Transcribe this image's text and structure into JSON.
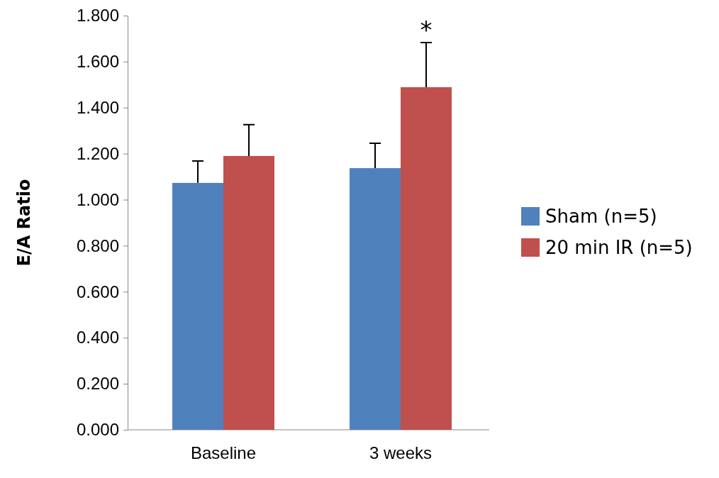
{
  "chart_data": {
    "type": "bar",
    "ylabel": "E/A Ratio",
    "categories": [
      "Baseline",
      "3 weeks"
    ],
    "series": [
      {
        "name": "Sham (n=5)",
        "color": "#4f81bd",
        "values": [
          1.073,
          1.137
        ],
        "errors": [
          [
            1.073,
            1.168
          ],
          [
            1.137,
            1.245
          ]
        ]
      },
      {
        "name": "20 min IR (n=5)",
        "color": "#c0504d",
        "values": [
          1.19,
          1.489
        ],
        "errors": [
          [
            1.19,
            1.326
          ],
          [
            1.489,
            1.683
          ]
        ]
      }
    ],
    "ylim": [
      0,
      1.8
    ],
    "yticks": [
      {
        "value": 0,
        "label": "0.000"
      },
      {
        "value": 0.2,
        "label": "0.200"
      },
      {
        "value": 0.4,
        "label": "0.400"
      },
      {
        "value": 0.6,
        "label": "0.600"
      },
      {
        "value": 0.8,
        "label": "0.800"
      },
      {
        "value": 1,
        "label": "1.000"
      },
      {
        "value": 1.2,
        "label": "1.200"
      },
      {
        "value": 1.4,
        "label": "1.400"
      },
      {
        "value": 1.6,
        "label": "1.600"
      },
      {
        "value": 1.8,
        "label": "1.800"
      }
    ],
    "annotations": [
      "*"
    ],
    "legend": "right",
    "grid": false
  }
}
